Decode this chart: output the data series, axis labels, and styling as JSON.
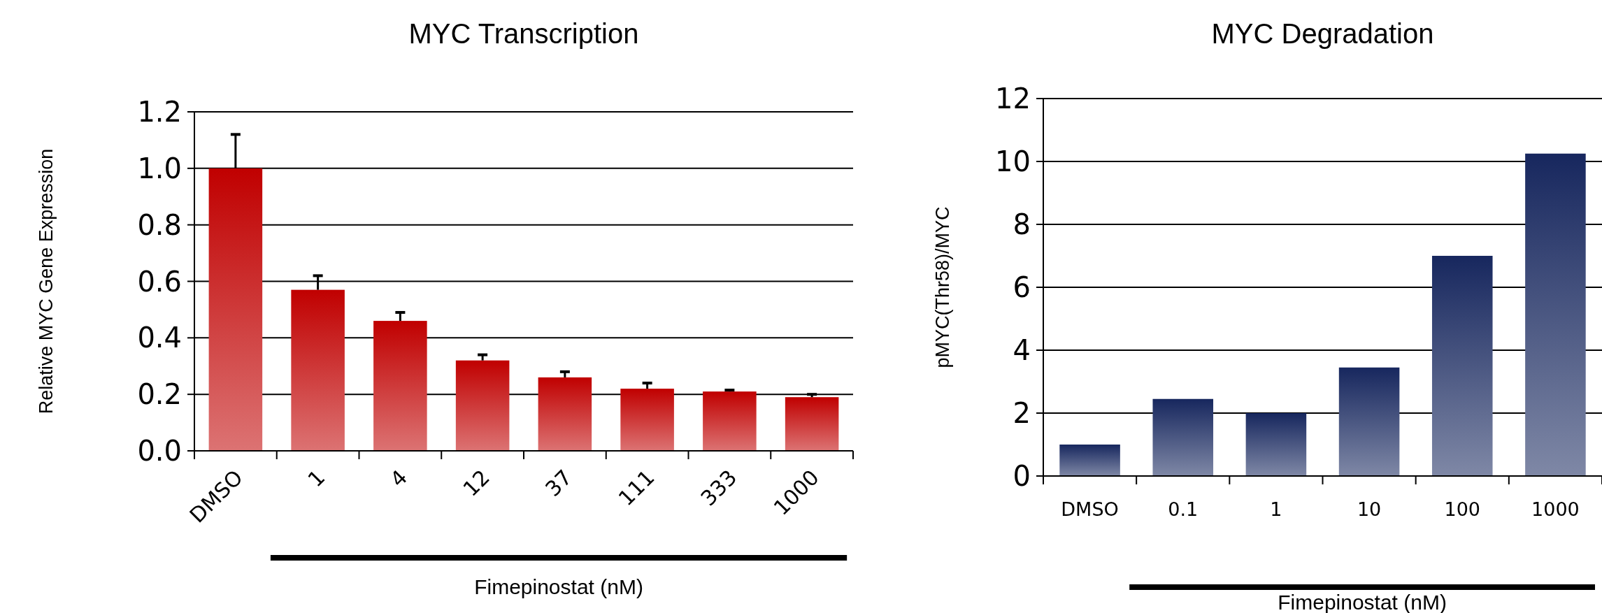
{
  "chart_data": [
    {
      "type": "bar",
      "title": "MYC Transcription",
      "ylabel": "Relative MYC Gene Expression",
      "xlabel": "Fimepinostat (nM)",
      "categories": [
        "DMSO",
        "1",
        "4",
        "12",
        "37",
        "111",
        "333",
        "1000"
      ],
      "series": [
        {
          "color": "#c00000",
          "values": [
            1.0,
            0.57,
            0.46,
            0.32,
            0.26,
            0.22,
            0.21,
            0.19
          ],
          "errors": [
            [
              1.0,
              1.12
            ],
            [
              0.57,
              0.62
            ],
            [
              0.46,
              0.49
            ],
            [
              0.32,
              0.34
            ],
            [
              0.26,
              0.28
            ],
            [
              0.22,
              0.24
            ],
            [
              0.21,
              0.215
            ],
            [
              0.19,
              0.2
            ]
          ]
        }
      ],
      "ylim": [
        0,
        1.2
      ],
      "yticks": [
        {
          "value": 0,
          "label": "0.0"
        },
        {
          "value": 0.2,
          "label": "0.2"
        },
        {
          "value": 0.4,
          "label": "0.4"
        },
        {
          "value": 0.6,
          "label": "0.6"
        },
        {
          "value": 0.8,
          "label": "0.8"
        },
        {
          "value": 1.0,
          "label": "1.0"
        },
        {
          "value": 1.2,
          "label": "1.2"
        }
      ],
      "grid": "y"
    },
    {
      "type": "bar",
      "title": "MYC Degradation",
      "ylabel": "pMYC(Thr58)/MYC",
      "xlabel": "Fimepinostat (nM)",
      "categories": [
        "DMSO",
        "0.1",
        "1",
        "10",
        "100",
        "1000"
      ],
      "series": [
        {
          "color": "#17275e",
          "values": [
            1.0,
            2.45,
            2.0,
            3.45,
            7.0,
            10.25
          ]
        }
      ],
      "ylim": [
        0,
        12
      ],
      "yticks": [
        0,
        2,
        4,
        6,
        8,
        10,
        12
      ],
      "grid": "y"
    }
  ]
}
